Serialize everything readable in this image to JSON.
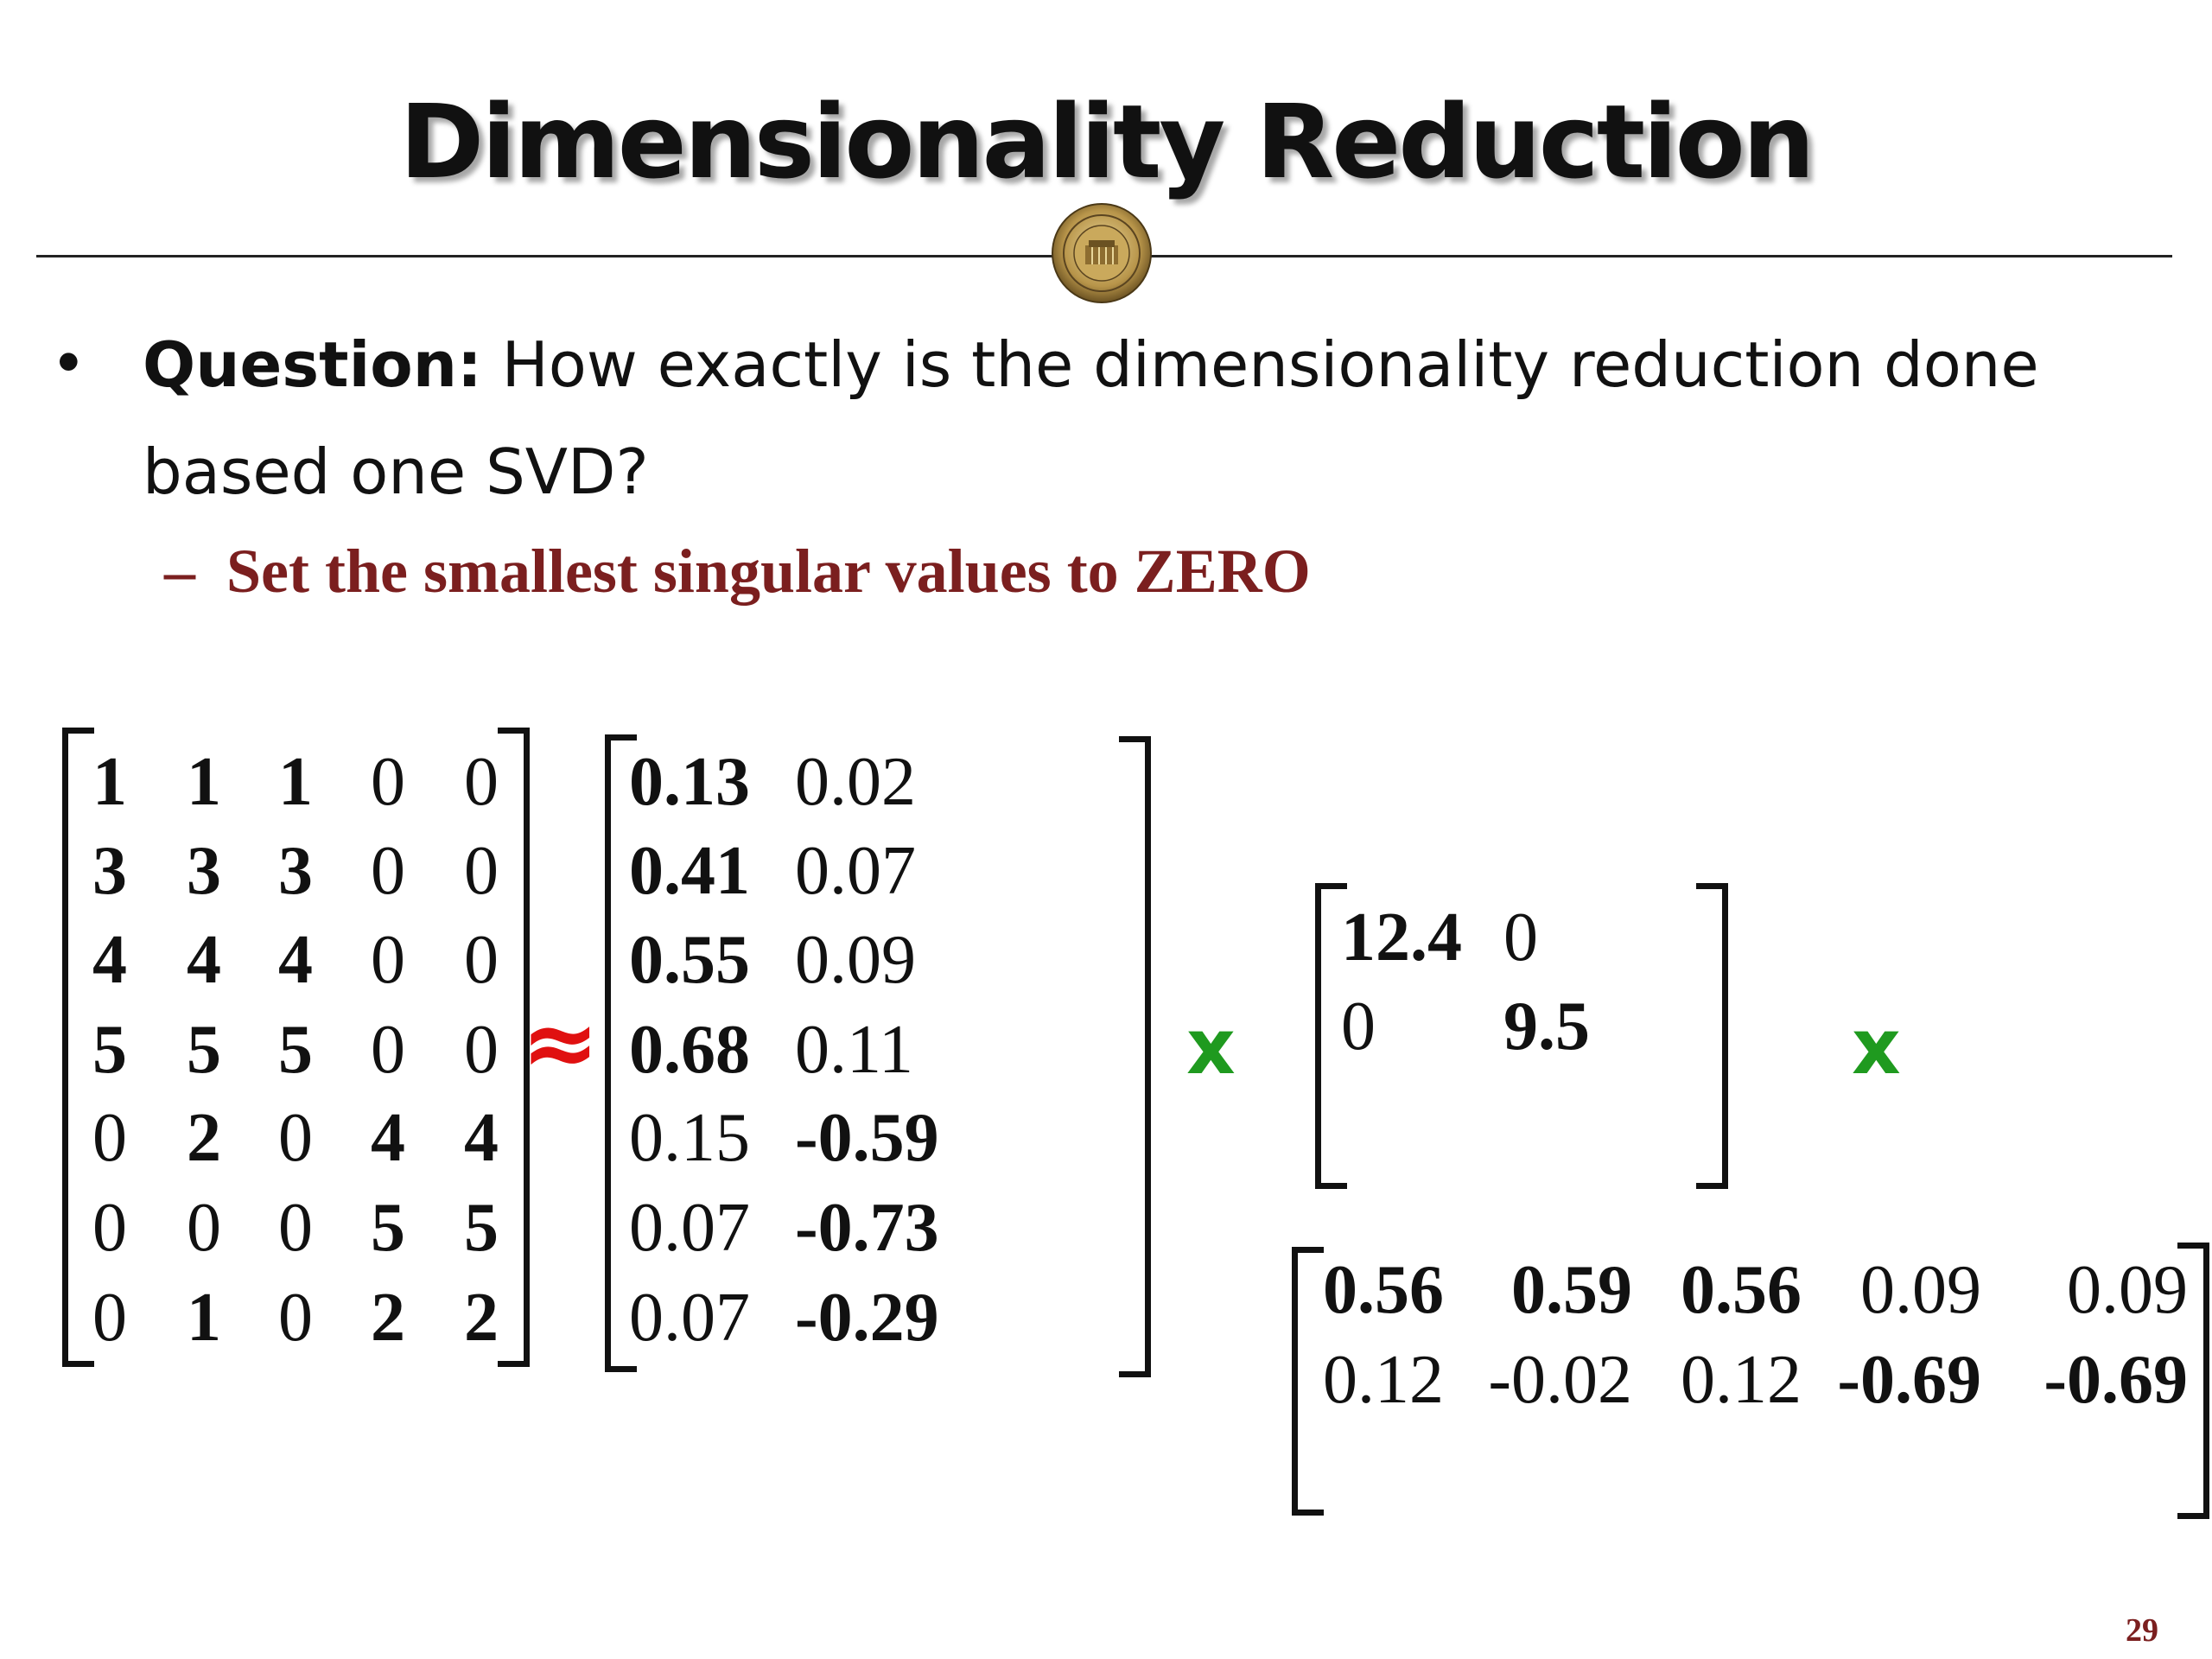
{
  "slide": {
    "title": "Dimensionality Reduction",
    "bullet_lead": "Question:",
    "bullet_text": " How exactly is the dimensionality reduction done based one SVD?",
    "sub_bullet_dash": "–",
    "sub_bullet_text": "Set the smallest singular values to ZERO",
    "approx_symbol": "≈",
    "times_symbol": "x",
    "page_number": "29"
  },
  "matrix_a": [
    [
      "1",
      "1",
      "1",
      "0",
      "0"
    ],
    [
      "3",
      "3",
      "3",
      "0",
      "0"
    ],
    [
      "4",
      "4",
      "4",
      "0",
      "0"
    ],
    [
      "5",
      "5",
      "5",
      "0",
      "0"
    ],
    [
      "0",
      "2",
      "0",
      "4",
      "4"
    ],
    [
      "0",
      "0",
      "0",
      "5",
      "5"
    ],
    [
      "0",
      "1",
      "0",
      "2",
      "2"
    ]
  ],
  "matrix_a_bold": [
    [
      true,
      true,
      true,
      false,
      false
    ],
    [
      true,
      true,
      true,
      false,
      false
    ],
    [
      true,
      true,
      true,
      false,
      false
    ],
    [
      true,
      true,
      true,
      false,
      false
    ],
    [
      false,
      true,
      false,
      true,
      true
    ],
    [
      false,
      false,
      false,
      true,
      true
    ],
    [
      false,
      true,
      false,
      true,
      true
    ]
  ],
  "matrix_u": [
    [
      "0.13",
      "0.02"
    ],
    [
      "0.41",
      "0.07"
    ],
    [
      "0.55",
      "0.09"
    ],
    [
      "0.68",
      "0.11"
    ],
    [
      "0.15",
      "-0.59"
    ],
    [
      "0.07",
      "-0.73"
    ],
    [
      "0.07",
      "-0.29"
    ]
  ],
  "matrix_u_bold": [
    [
      true,
      false
    ],
    [
      true,
      false
    ],
    [
      true,
      false
    ],
    [
      true,
      false
    ],
    [
      false,
      true
    ],
    [
      false,
      true
    ],
    [
      false,
      true
    ]
  ],
  "matrix_s": [
    [
      "12.4",
      "0"
    ],
    [
      "0",
      "9.5"
    ]
  ],
  "matrix_s_bold": [
    [
      true,
      false
    ],
    [
      false,
      true
    ]
  ],
  "matrix_v": [
    [
      "0.56",
      "0.59",
      "0.56",
      "0.09",
      "0.09"
    ],
    [
      "0.12",
      "-0.02",
      "0.12",
      "-0.69",
      "-0.69"
    ]
  ],
  "matrix_v_bold": [
    [
      true,
      true,
      true,
      false,
      false
    ],
    [
      false,
      false,
      false,
      true,
      true
    ]
  ]
}
